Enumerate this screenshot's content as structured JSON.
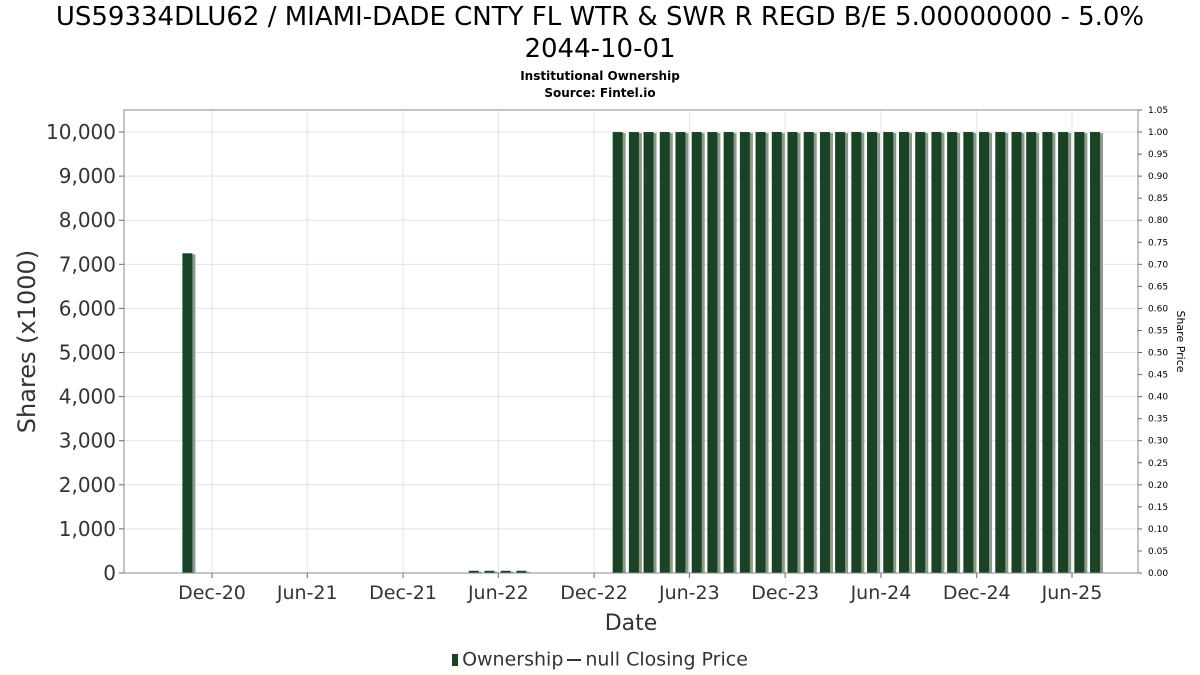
{
  "chart_data": {
    "type": "bar",
    "title_line1": "US59334DLU62 / MIAMI-DADE CNTY FL WTR & SWR R REGD B/E 5.00000000 - 5.0%",
    "title_line2": "2044-10-01",
    "subtitle1": "Institutional Ownership",
    "subtitle2": "Source: Fintel.io",
    "xlabel": "Date",
    "ylabel": "Shares (x1000)",
    "y2label": "Share Price",
    "ylim": [
      0,
      10500
    ],
    "y2lim": [
      0,
      1.05
    ],
    "yticks": [
      "0",
      "1,000",
      "2,000",
      "3,000",
      "4,000",
      "5,000",
      "6,000",
      "7,000",
      "8,000",
      "9,000",
      "10,000"
    ],
    "y2ticks": [
      "0.00",
      "0.05",
      "0.10",
      "0.15",
      "0.20",
      "0.25",
      "0.30",
      "0.35",
      "0.40",
      "0.45",
      "0.50",
      "0.55",
      "0.60",
      "0.65",
      "0.70",
      "0.75",
      "0.80",
      "0.85",
      "0.90",
      "0.95",
      "1.00",
      "1.05"
    ],
    "xticks": [
      "Dec-20",
      "Jun-21",
      "Dec-21",
      "Jun-22",
      "Dec-22",
      "Jun-23",
      "Dec-23",
      "Jun-24",
      "Dec-24",
      "Jun-25"
    ],
    "grid": true,
    "legend_position": "bottom",
    "series": [
      {
        "name": "Ownership",
        "color": "#1a4226",
        "bars": [
          {
            "date": "2020-10-15",
            "value": 7250
          },
          {
            "date": "2022-04-15",
            "value": 50
          },
          {
            "date": "2022-05-15",
            "value": 50
          },
          {
            "date": "2022-06-15",
            "value": 50
          },
          {
            "date": "2022-07-15",
            "value": 50
          },
          {
            "date": "2023-01-15",
            "value": 10000
          },
          {
            "date": "2023-02-15",
            "value": 10000
          },
          {
            "date": "2023-03-15",
            "value": 10000
          },
          {
            "date": "2023-04-15",
            "value": 10000
          },
          {
            "date": "2023-05-15",
            "value": 10000
          },
          {
            "date": "2023-06-15",
            "value": 10000
          },
          {
            "date": "2023-07-15",
            "value": 10000
          },
          {
            "date": "2023-08-15",
            "value": 10000
          },
          {
            "date": "2023-09-15",
            "value": 10000
          },
          {
            "date": "2023-10-15",
            "value": 10000
          },
          {
            "date": "2023-11-15",
            "value": 10000
          },
          {
            "date": "2023-12-15",
            "value": 10000
          },
          {
            "date": "2024-01-15",
            "value": 10000
          },
          {
            "date": "2024-02-15",
            "value": 10000
          },
          {
            "date": "2024-03-15",
            "value": 10000
          },
          {
            "date": "2024-04-15",
            "value": 10000
          },
          {
            "date": "2024-05-15",
            "value": 10000
          },
          {
            "date": "2024-06-15",
            "value": 10000
          },
          {
            "date": "2024-07-15",
            "value": 10000
          },
          {
            "date": "2024-08-15",
            "value": 10000
          },
          {
            "date": "2024-09-15",
            "value": 10000
          },
          {
            "date": "2024-10-15",
            "value": 10000
          },
          {
            "date": "2024-11-15",
            "value": 10000
          },
          {
            "date": "2024-12-15",
            "value": 10000
          },
          {
            "date": "2025-01-15",
            "value": 10000
          },
          {
            "date": "2025-02-15",
            "value": 10000
          },
          {
            "date": "2025-03-15",
            "value": 10000
          },
          {
            "date": "2025-04-15",
            "value": 10000
          },
          {
            "date": "2025-05-15",
            "value": 10000
          },
          {
            "date": "2025-06-15",
            "value": 10000
          },
          {
            "date": "2025-07-15",
            "value": 10000
          }
        ]
      },
      {
        "name": "null Closing Price",
        "color": "#333333",
        "values": []
      }
    ]
  },
  "legend": {
    "ownership_label": "Ownership",
    "price_label": "null Closing Price"
  }
}
